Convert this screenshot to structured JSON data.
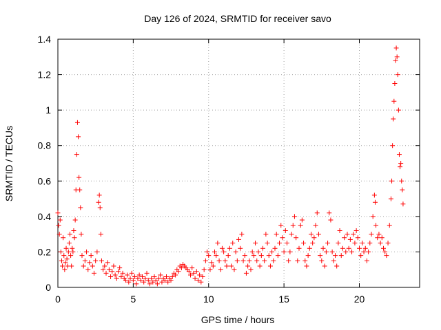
{
  "chart_data": {
    "type": "scatter",
    "title": "Day 126 of 2024, SRMTID for receiver savo",
    "xlabel": "GPS time / hours",
    "ylabel": "SRMTID / TECUs",
    "xlim": [
      0,
      24
    ],
    "ylim": [
      0,
      1.4
    ],
    "xticks": [
      "0",
      "5",
      "10",
      "15",
      "20"
    ],
    "yticks": [
      "0",
      "0.2",
      "0.4",
      "0.6",
      "0.8",
      "1",
      "1.2",
      "1.4"
    ],
    "grid": true,
    "marker": "+",
    "color": "#ff0000",
    "series": [
      {
        "name": "savo",
        "points": [
          [
            0.0,
            0.42
          ],
          [
            0.05,
            0.35
          ],
          [
            0.1,
            0.3
          ],
          [
            0.15,
            0.38
          ],
          [
            0.2,
            0.2
          ],
          [
            0.25,
            0.15
          ],
          [
            0.3,
            0.12
          ],
          [
            0.35,
            0.28
          ],
          [
            0.4,
            0.18
          ],
          [
            0.45,
            0.1
          ],
          [
            0.5,
            0.14
          ],
          [
            0.55,
            0.22
          ],
          [
            0.6,
            0.16
          ],
          [
            0.65,
            0.12
          ],
          [
            0.7,
            0.2
          ],
          [
            0.75,
            0.25
          ],
          [
            0.8,
            0.3
          ],
          [
            0.85,
            0.18
          ],
          [
            0.9,
            0.12
          ],
          [
            0.95,
            0.22
          ],
          [
            1.0,
            0.2
          ],
          [
            1.05,
            0.32
          ],
          [
            1.1,
            0.28
          ],
          [
            1.15,
            0.38
          ],
          [
            1.2,
            0.55
          ],
          [
            1.25,
            0.75
          ],
          [
            1.3,
            0.93
          ],
          [
            1.35,
            0.85
          ],
          [
            1.4,
            0.62
          ],
          [
            1.45,
            0.55
          ],
          [
            1.5,
            0.45
          ],
          [
            1.55,
            0.3
          ],
          [
            1.6,
            0.18
          ],
          [
            1.7,
            0.12
          ],
          [
            1.8,
            0.15
          ],
          [
            1.9,
            0.2
          ],
          [
            2.0,
            0.1
          ],
          [
            2.1,
            0.14
          ],
          [
            2.2,
            0.18
          ],
          [
            2.3,
            0.12
          ],
          [
            2.4,
            0.08
          ],
          [
            2.5,
            0.15
          ],
          [
            2.6,
            0.2
          ],
          [
            2.7,
            0.48
          ],
          [
            2.75,
            0.52
          ],
          [
            2.8,
            0.45
          ],
          [
            2.85,
            0.3
          ],
          [
            2.9,
            0.15
          ],
          [
            3.0,
            0.1
          ],
          [
            3.1,
            0.12
          ],
          [
            3.2,
            0.08
          ],
          [
            3.3,
            0.14
          ],
          [
            3.4,
            0.1
          ],
          [
            3.5,
            0.06
          ],
          [
            3.6,
            0.09
          ],
          [
            3.7,
            0.12
          ],
          [
            3.8,
            0.07
          ],
          [
            3.9,
            0.05
          ],
          [
            4.0,
            0.09
          ],
          [
            4.1,
            0.11
          ],
          [
            4.2,
            0.06
          ],
          [
            4.3,
            0.08
          ],
          [
            4.4,
            0.05
          ],
          [
            4.5,
            0.04
          ],
          [
            4.6,
            0.07
          ],
          [
            4.7,
            0.03
          ],
          [
            4.8,
            0.05
          ],
          [
            4.9,
            0.08
          ],
          [
            5.0,
            0.04
          ],
          [
            5.1,
            0.06
          ],
          [
            5.2,
            0.02
          ],
          [
            5.3,
            0.05
          ],
          [
            5.4,
            0.07
          ],
          [
            5.5,
            0.04
          ],
          [
            5.6,
            0.06
          ],
          [
            5.7,
            0.03
          ],
          [
            5.8,
            0.05
          ],
          [
            5.9,
            0.08
          ],
          [
            6.0,
            0.04
          ],
          [
            6.1,
            0.02
          ],
          [
            6.2,
            0.05
          ],
          [
            6.3,
            0.03
          ],
          [
            6.4,
            0.06
          ],
          [
            6.5,
            0.04
          ],
          [
            6.6,
            0.02
          ],
          [
            6.7,
            0.05
          ],
          [
            6.8,
            0.07
          ],
          [
            6.9,
            0.03
          ],
          [
            7.0,
            0.05
          ],
          [
            7.1,
            0.04
          ],
          [
            7.2,
            0.06
          ],
          [
            7.3,
            0.03
          ],
          [
            7.4,
            0.05
          ],
          [
            7.5,
            0.04
          ],
          [
            7.6,
            0.06
          ],
          [
            7.7,
            0.08
          ],
          [
            7.8,
            0.07
          ],
          [
            7.9,
            0.1
          ],
          [
            8.0,
            0.09
          ],
          [
            8.1,
            0.12
          ],
          [
            8.2,
            0.11
          ],
          [
            8.3,
            0.13
          ],
          [
            8.4,
            0.12
          ],
          [
            8.5,
            0.11
          ],
          [
            8.6,
            0.1
          ],
          [
            8.7,
            0.09
          ],
          [
            8.8,
            0.07
          ],
          [
            8.9,
            0.11
          ],
          [
            9.0,
            0.08
          ],
          [
            9.1,
            0.05
          ],
          [
            9.2,
            0.09
          ],
          [
            9.3,
            0.04
          ],
          [
            9.4,
            0.07
          ],
          [
            9.5,
            0.03
          ],
          [
            9.6,
            0.06
          ],
          [
            9.7,
            0.1
          ],
          [
            9.8,
            0.15
          ],
          [
            9.9,
            0.2
          ],
          [
            10.0,
            0.18
          ],
          [
            10.1,
            0.1
          ],
          [
            10.2,
            0.14
          ],
          [
            10.3,
            0.12
          ],
          [
            10.4,
            0.2
          ],
          [
            10.5,
            0.18
          ],
          [
            10.6,
            0.25
          ],
          [
            10.7,
            0.15
          ],
          [
            10.8,
            0.1
          ],
          [
            10.9,
            0.22
          ],
          [
            11.0,
            0.2
          ],
          [
            11.1,
            0.15
          ],
          [
            11.2,
            0.12
          ],
          [
            11.3,
            0.18
          ],
          [
            11.4,
            0.22
          ],
          [
            11.5,
            0.12
          ],
          [
            11.6,
            0.25
          ],
          [
            11.7,
            0.1
          ],
          [
            11.8,
            0.2
          ],
          [
            11.9,
            0.15
          ],
          [
            12.0,
            0.27
          ],
          [
            12.1,
            0.22
          ],
          [
            12.2,
            0.3
          ],
          [
            12.3,
            0.15
          ],
          [
            12.4,
            0.18
          ],
          [
            12.5,
            0.08
          ],
          [
            12.6,
            0.12
          ],
          [
            12.7,
            0.15
          ],
          [
            12.8,
            0.1
          ],
          [
            12.9,
            0.2
          ],
          [
            13.0,
            0.18
          ],
          [
            13.1,
            0.25
          ],
          [
            13.2,
            0.15
          ],
          [
            13.3,
            0.2
          ],
          [
            13.4,
            0.12
          ],
          [
            13.5,
            0.18
          ],
          [
            13.6,
            0.22
          ],
          [
            13.7,
            0.15
          ],
          [
            13.8,
            0.3
          ],
          [
            13.9,
            0.25
          ],
          [
            14.0,
            0.18
          ],
          [
            14.1,
            0.12
          ],
          [
            14.2,
            0.2
          ],
          [
            14.3,
            0.15
          ],
          [
            14.4,
            0.22
          ],
          [
            14.5,
            0.3
          ],
          [
            14.6,
            0.18
          ],
          [
            14.7,
            0.25
          ],
          [
            14.8,
            0.35
          ],
          [
            14.9,
            0.28
          ],
          [
            15.0,
            0.2
          ],
          [
            15.1,
            0.32
          ],
          [
            15.2,
            0.25
          ],
          [
            15.3,
            0.15
          ],
          [
            15.4,
            0.2
          ],
          [
            15.5,
            0.3
          ],
          [
            15.6,
            0.35
          ],
          [
            15.7,
            0.4
          ],
          [
            15.8,
            0.28
          ],
          [
            15.9,
            0.15
          ],
          [
            16.0,
            0.22
          ],
          [
            16.1,
            0.35
          ],
          [
            16.2,
            0.38
          ],
          [
            16.3,
            0.25
          ],
          [
            16.4,
            0.15
          ],
          [
            16.5,
            0.12
          ],
          [
            16.6,
            0.18
          ],
          [
            16.7,
            0.22
          ],
          [
            16.8,
            0.3
          ],
          [
            16.9,
            0.25
          ],
          [
            17.0,
            0.28
          ],
          [
            17.1,
            0.35
          ],
          [
            17.2,
            0.42
          ],
          [
            17.3,
            0.3
          ],
          [
            17.4,
            0.18
          ],
          [
            17.5,
            0.15
          ],
          [
            17.6,
            0.22
          ],
          [
            17.7,
            0.12
          ],
          [
            17.8,
            0.2
          ],
          [
            17.9,
            0.25
          ],
          [
            18.0,
            0.42
          ],
          [
            18.1,
            0.38
          ],
          [
            18.2,
            0.2
          ],
          [
            18.3,
            0.15
          ],
          [
            18.4,
            0.18
          ],
          [
            18.5,
            0.12
          ],
          [
            18.6,
            0.25
          ],
          [
            18.7,
            0.32
          ],
          [
            18.8,
            0.18
          ],
          [
            18.9,
            0.22
          ],
          [
            19.0,
            0.28
          ],
          [
            19.1,
            0.2
          ],
          [
            19.2,
            0.3
          ],
          [
            19.3,
            0.22
          ],
          [
            19.4,
            0.27
          ],
          [
            19.5,
            0.2
          ],
          [
            19.6,
            0.3
          ],
          [
            19.7,
            0.25
          ],
          [
            19.8,
            0.32
          ],
          [
            19.9,
            0.28
          ],
          [
            20.0,
            0.22
          ],
          [
            20.1,
            0.18
          ],
          [
            20.2,
            0.25
          ],
          [
            20.3,
            0.2
          ],
          [
            20.4,
            0.22
          ],
          [
            20.5,
            0.15
          ],
          [
            20.6,
            0.2
          ],
          [
            20.7,
            0.25
          ],
          [
            20.8,
            0.3
          ],
          [
            20.9,
            0.4
          ],
          [
            21.0,
            0.52
          ],
          [
            21.05,
            0.48
          ],
          [
            21.1,
            0.35
          ],
          [
            21.2,
            0.28
          ],
          [
            21.3,
            0.3
          ],
          [
            21.4,
            0.25
          ],
          [
            21.5,
            0.28
          ],
          [
            21.6,
            0.22
          ],
          [
            21.7,
            0.2
          ],
          [
            21.8,
            0.18
          ],
          [
            21.9,
            0.25
          ],
          [
            22.0,
            0.35
          ],
          [
            22.1,
            0.5
          ],
          [
            22.15,
            0.6
          ],
          [
            22.2,
            0.8
          ],
          [
            22.25,
            0.95
          ],
          [
            22.3,
            1.05
          ],
          [
            22.35,
            1.15
          ],
          [
            22.4,
            1.28
          ],
          [
            22.45,
            1.35
          ],
          [
            22.5,
            1.3
          ],
          [
            22.55,
            1.2
          ],
          [
            22.6,
            1.0
          ],
          [
            22.65,
            0.75
          ],
          [
            22.7,
            0.68
          ],
          [
            22.75,
            0.7
          ],
          [
            22.8,
            0.6
          ],
          [
            22.85,
            0.55
          ],
          [
            22.9,
            0.47
          ]
        ]
      }
    ]
  }
}
